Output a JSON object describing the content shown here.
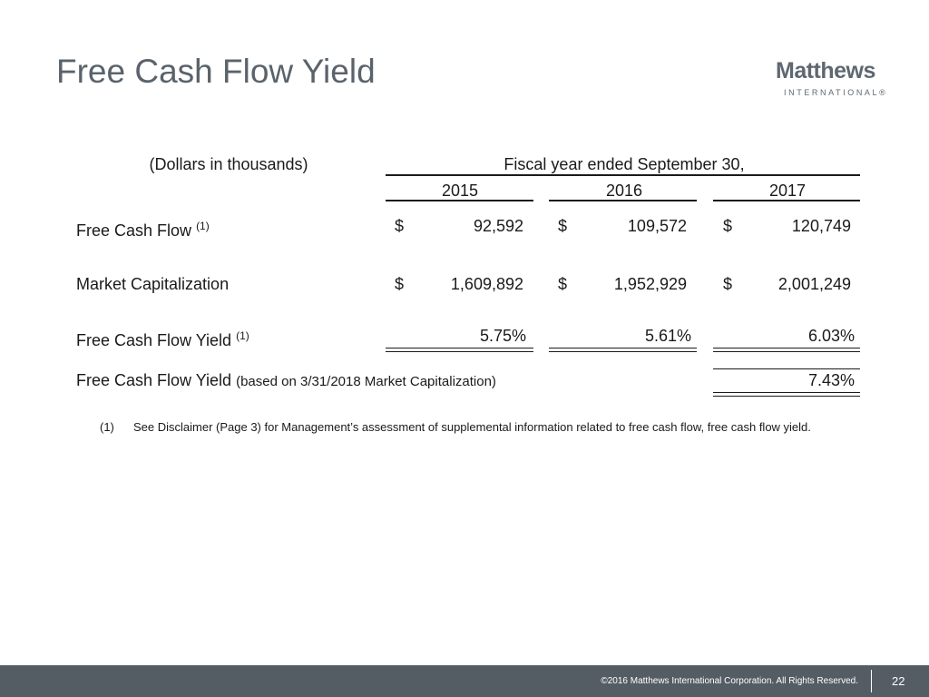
{
  "header": {
    "title": "Free Cash Flow Yield",
    "logo": {
      "name": "Matthews",
      "subtitle": "INTERNATIONAL®"
    }
  },
  "table": {
    "units": "(Dollars in thousands)",
    "period": "Fiscal year ended September 30,",
    "years": [
      "2015",
      "2016",
      "2017"
    ],
    "rows": [
      {
        "label": "Free Cash Flow",
        "note": "(1)",
        "currency": [
          "$",
          "$",
          "$"
        ],
        "values": [
          "92,592",
          "109,572",
          "120,749"
        ]
      },
      {
        "label": "Market Capitalization",
        "currency": [
          "$",
          "$",
          "$"
        ],
        "values": [
          "1,609,892",
          "1,952,929",
          "2,001,249"
        ]
      },
      {
        "label": "Free Cash Flow Yield",
        "note": "(1)",
        "values": [
          "5.75%",
          "5.61%",
          "6.03%"
        ]
      },
      {
        "label": "Free Cash Flow Yield",
        "qualifier": "(based on 3/31/2018 Market Capitalization)",
        "values": [
          "7.43%"
        ]
      }
    ]
  },
  "footnotes": [
    {
      "marker": "(1)",
      "text": "See Disclaimer (Page 3) for Management’s assessment of supplemental information related to free cash flow, free cash flow yield."
    }
  ],
  "footer": {
    "copyright": "©2016 Matthews International Corporation. All Rights Reserved.",
    "page": "22"
  }
}
